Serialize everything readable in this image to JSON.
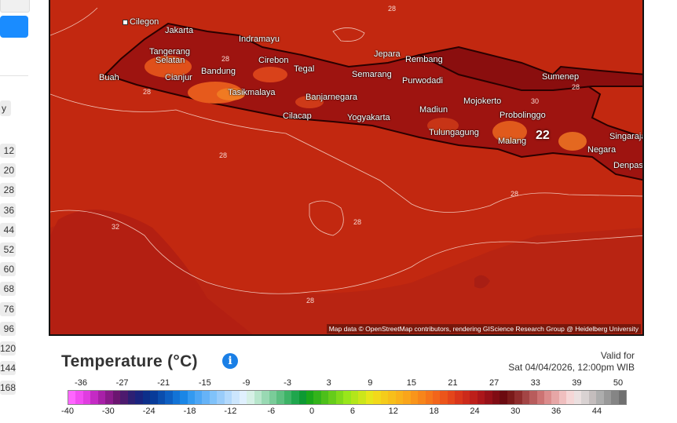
{
  "sidebar": {
    "top_letter": "y",
    "items": [
      "12",
      "20",
      "28",
      "36",
      "44",
      "52",
      "60",
      "68",
      "76",
      "96",
      "120",
      "144",
      "168"
    ]
  },
  "map": {
    "attribution": "Map data © OpenStreetMap contributors, rendering GIScience Research Group @ Heidelberg University",
    "hot_value": "22",
    "cities": [
      {
        "name": "Cilegon"
      },
      {
        "name": "Jakarta"
      },
      {
        "name": "Indramayu"
      },
      {
        "name": "Tangerang"
      },
      {
        "name": "Selatan"
      },
      {
        "name": "Buah"
      },
      {
        "name": "Cianjur"
      },
      {
        "name": "Bandung"
      },
      {
        "name": "Cirebon"
      },
      {
        "name": "Tegal"
      },
      {
        "name": "Tasikmalaya"
      },
      {
        "name": "Banjarnegara"
      },
      {
        "name": "Cilacap"
      },
      {
        "name": "Jepara"
      },
      {
        "name": "Rembang"
      },
      {
        "name": "Semarang"
      },
      {
        "name": "Purwodadi"
      },
      {
        "name": "Yogyakarta"
      },
      {
        "name": "Madiun"
      },
      {
        "name": "Mojokerto"
      },
      {
        "name": "Sumenep"
      },
      {
        "name": "Probolinggo"
      },
      {
        "name": "Tulungagung"
      },
      {
        "name": "Malang"
      },
      {
        "name": "Singaraja"
      },
      {
        "name": "Negara"
      },
      {
        "name": "Denpasar"
      }
    ],
    "contour_labels": [
      "28",
      "28",
      "28",
      "28",
      "28",
      "28",
      "32",
      "28",
      "28",
      "30"
    ]
  },
  "legend": {
    "title": "Temperature (°C)",
    "info_icon": "info-icon",
    "valid_label": "Valid for",
    "valid_time": "Sat 04/04/2026, 12:00pm WIB",
    "top_ticks": [
      "-36",
      "-27",
      "-21",
      "-15",
      "-9",
      "-3",
      "3",
      "9",
      "15",
      "21",
      "27",
      "33",
      "39",
      "50"
    ],
    "bottom_ticks": [
      "-40",
      "-30",
      "-24",
      "-18",
      "-12",
      "-6",
      "0",
      "6",
      "12",
      "18",
      "24",
      "30",
      "36",
      "44"
    ],
    "colors": [
      "#ff66ff",
      "#f24df2",
      "#e03de0",
      "#c42bc4",
      "#a820a8",
      "#8a1a8a",
      "#6b1570",
      "#4d1a6e",
      "#2d1f73",
      "#1a237e",
      "#0d2f8a",
      "#083b99",
      "#0a4dad",
      "#0d5fc2",
      "#1273d6",
      "#1a86e6",
      "#3399f0",
      "#4da6f5",
      "#66b3f7",
      "#80c2fa",
      "#99ccfa",
      "#b3d9fc",
      "#cce6fd",
      "#e0f0fe",
      "#d6f0e6",
      "#b8e6cc",
      "#99d9b3",
      "#7acc99",
      "#5cbf80",
      "#3db366",
      "#1fa64d",
      "#0d9933",
      "#1aa61a",
      "#33b31a",
      "#4dbf1a",
      "#66cc1a",
      "#80d91a",
      "#99e61a",
      "#b3e61a",
      "#cce61a",
      "#e6e61a",
      "#f2d91a",
      "#f5cc1a",
      "#f7bf1a",
      "#f9b21a",
      "#faa51a",
      "#f9951a",
      "#f7851a",
      "#f5751a",
      "#f2651a",
      "#ec551a",
      "#e4451a",
      "#d9351a",
      "#cc2a1a",
      "#bd1f1a",
      "#ab161a",
      "#961018",
      "#800c14",
      "#6b0a10",
      "#7a1a1a",
      "#8f2d2d",
      "#a34545",
      "#b85c5c",
      "#cc7373",
      "#db8c8c",
      "#e6a6a6",
      "#f0bfbf",
      "#f5d6d6",
      "#ebe0e0",
      "#d9d2d2",
      "#c4bdbd",
      "#adadad",
      "#999999",
      "#858585",
      "#707070"
    ]
  }
}
